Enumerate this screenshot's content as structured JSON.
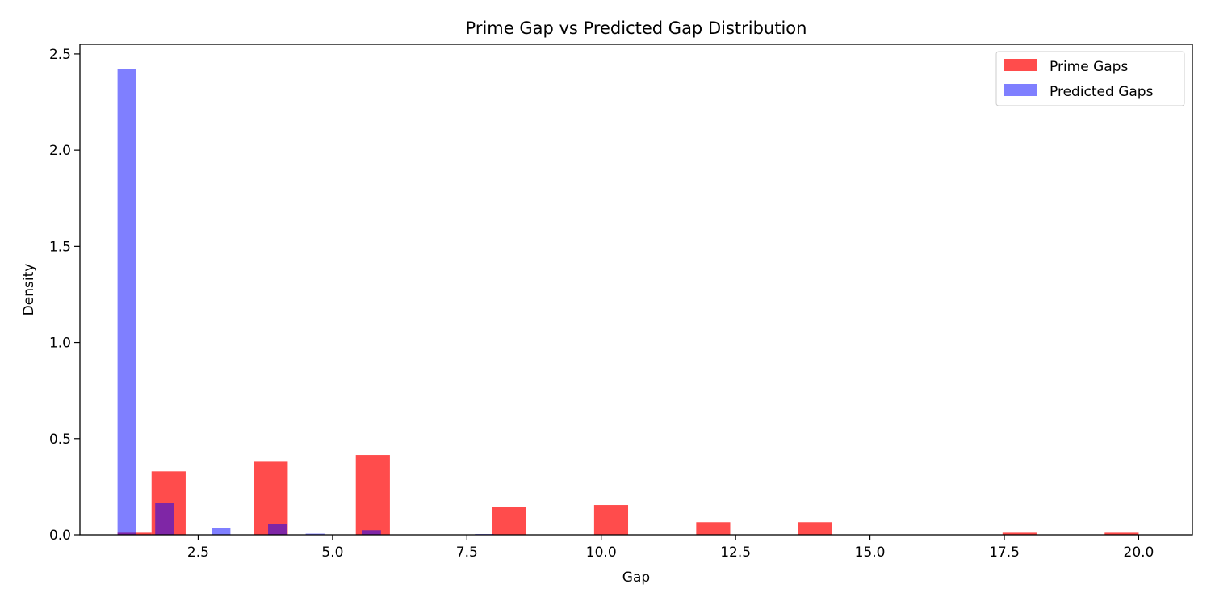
{
  "chart_data": {
    "type": "bar",
    "title": "Prime Gap vs Predicted Gap Distribution",
    "xlabel": "Gap",
    "ylabel": "Density",
    "xlim": [
      0.3,
      21.0
    ],
    "ylim": [
      0,
      2.55
    ],
    "xticks": [
      2.5,
      5.0,
      7.5,
      10.0,
      12.5,
      15.0,
      17.5,
      20.0
    ],
    "xtick_labels": [
      "2.5",
      "5.0",
      "7.5",
      "10.0",
      "12.5",
      "15.0",
      "17.5",
      "20.0"
    ],
    "yticks": [
      0.0,
      0.5,
      1.0,
      1.5,
      2.0,
      2.5
    ],
    "ytick_labels": [
      "0.0",
      "0.5",
      "1.0",
      "1.5",
      "2.0",
      "2.5"
    ],
    "grid": false,
    "legend_position": "top-right",
    "series": [
      {
        "name": "Prime Gaps",
        "color": "#ff0000",
        "opacity": 0.7,
        "bins": [
          {
            "x0": 1.0,
            "x1": 1.633,
            "value": 0.011
          },
          {
            "x0": 1.633,
            "x1": 2.267,
            "value": 0.33
          },
          {
            "x0": 3.533,
            "x1": 4.167,
            "value": 0.38
          },
          {
            "x0": 5.433,
            "x1": 6.067,
            "value": 0.415
          },
          {
            "x0": 7.967,
            "x1": 8.6,
            "value": 0.143
          },
          {
            "x0": 9.867,
            "x1": 10.5,
            "value": 0.155
          },
          {
            "x0": 11.767,
            "x1": 12.4,
            "value": 0.066
          },
          {
            "x0": 13.667,
            "x1": 14.3,
            "value": 0.066
          },
          {
            "x0": 17.467,
            "x1": 18.1,
            "value": 0.011
          },
          {
            "x0": 19.367,
            "x1": 20.0,
            "value": 0.011
          }
        ]
      },
      {
        "name": "Predicted Gaps",
        "color": "#0000ff",
        "opacity": 0.5,
        "bins": [
          {
            "x0": 1.0,
            "x1": 1.35,
            "value": 2.42
          },
          {
            "x0": 1.7,
            "x1": 2.05,
            "value": 0.165
          },
          {
            "x0": 2.75,
            "x1": 3.1,
            "value": 0.036
          },
          {
            "x0": 3.8,
            "x1": 4.15,
            "value": 0.058
          },
          {
            "x0": 4.5,
            "x1": 4.85,
            "value": 0.006
          },
          {
            "x0": 5.55,
            "x1": 5.9,
            "value": 0.024
          },
          {
            "x0": 7.65,
            "x1": 8.0,
            "value": 0.004
          }
        ]
      }
    ]
  }
}
